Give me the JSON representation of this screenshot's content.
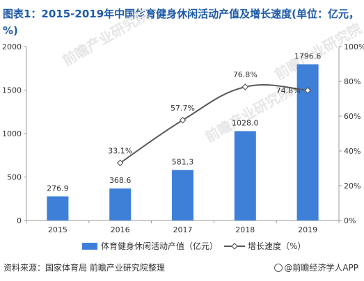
{
  "title": "图表1：2015-2019年中国体育健身休闲活动产值及增长速度(单位：亿元，%)",
  "source": "资料来源：国家体育局 前瞻产业研究院整理",
  "brand": "@前瞻经济学人APP",
  "watermark": "前瞻产业研究院",
  "colors": {
    "bar": "#3e7fd8",
    "line": "#595959",
    "title": "#1e5aa8",
    "axis": "#999999"
  },
  "chart_data": {
    "type": "bar",
    "categories": [
      "2015",
      "2016",
      "2017",
      "2018",
      "2019"
    ],
    "series": [
      {
        "name": "体育健身休闲活动产值（亿元）",
        "type": "bar",
        "axis": "left",
        "values": [
          276.9,
          368.6,
          581.3,
          1028.0,
          1796.6
        ],
        "labels": [
          "276.9",
          "368.6",
          "581.3",
          "1028.0",
          "1796.6"
        ]
      },
      {
        "name": "增长速度（%）",
        "type": "line",
        "axis": "right",
        "values": [
          null,
          33.1,
          57.7,
          76.8,
          74.8
        ],
        "labels": [
          "",
          "33.1%",
          "57.7%",
          "76.8%",
          "74.8%"
        ]
      }
    ],
    "y_left": {
      "ylim": [
        0,
        2000
      ],
      "ticks": [
        "0",
        "500",
        "1000",
        "1500",
        "2000"
      ]
    },
    "y_right": {
      "ylim": [
        0,
        100
      ],
      "ticks": [
        "0%",
        "20%",
        "40%",
        "60%",
        "80%",
        "100%"
      ]
    },
    "legend": "bottom",
    "grid": false
  }
}
